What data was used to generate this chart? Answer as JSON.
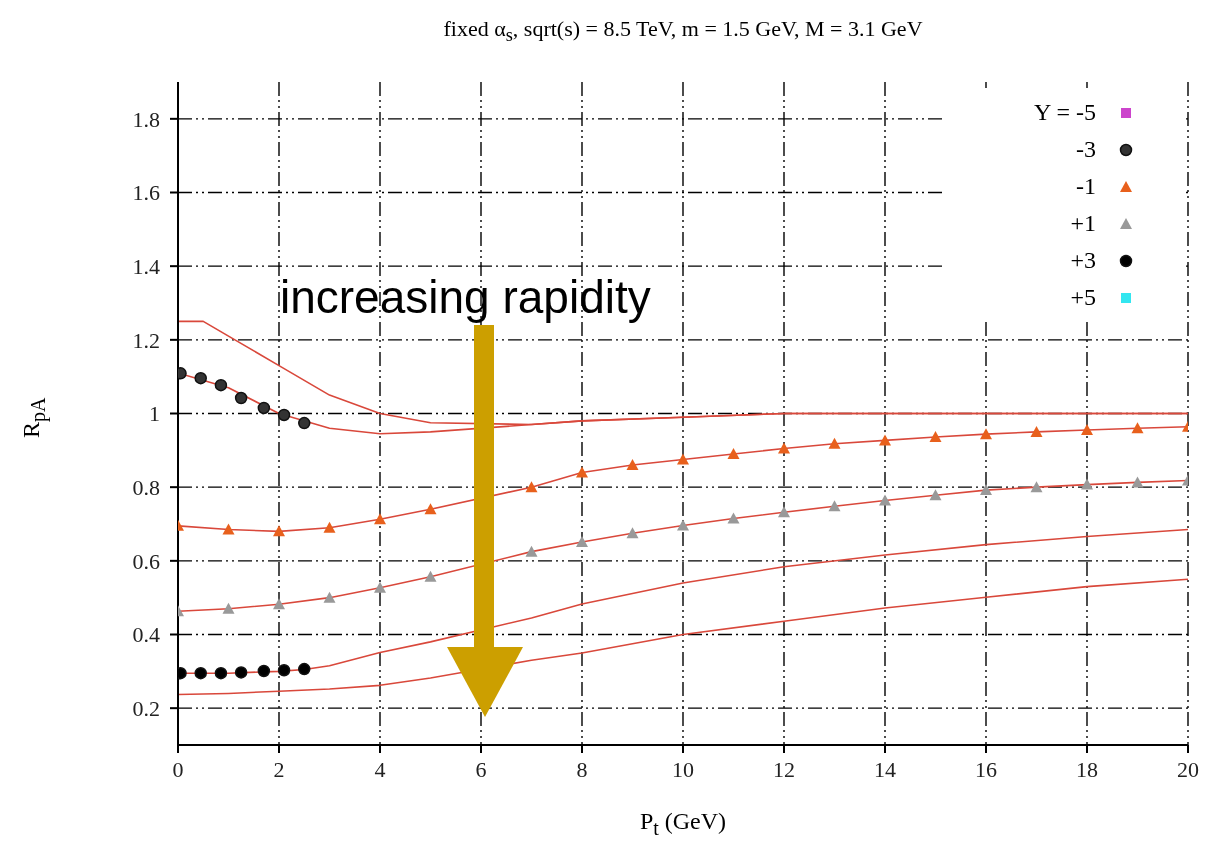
{
  "chart_data": {
    "type": "line",
    "title": "fixed α$_{s}$, sqrt(s) = 8.5 TeV, m = 1.5 GeV, M = 3.1 GeV",
    "xlabel": "P$_{t}$ (GeV)",
    "ylabel": "R$_{pA}$",
    "annotations": [
      "increasing rapidity"
    ],
    "xlim": [
      0,
      20
    ],
    "xticks": [
      0,
      2,
      4,
      6,
      8,
      10,
      12,
      14,
      16,
      18,
      20
    ],
    "ylim": [
      0.1,
      1.9
    ],
    "yticks": [
      0.2,
      0.4,
      0.6,
      0.8,
      1,
      1.2,
      1.4,
      1.6,
      1.8
    ],
    "grid": true,
    "legend": "top right",
    "line_style": "solid",
    "series": [
      {
        "color": "#d9483b",
        "x": [
          0,
          0.5,
          1,
          2,
          3,
          4,
          5,
          7,
          8,
          10,
          12,
          14,
          16,
          18,
          20
        ],
        "values": [
          1.25,
          1.25,
          1.21,
          1.13,
          1.05,
          1.0,
          0.975,
          0.97,
          0.98,
          0.99,
          1.0,
          1.0,
          1.0,
          1.0,
          1.0
        ]
      },
      {
        "color": "#d9483b",
        "x": [
          0,
          1,
          2,
          3,
          4,
          5,
          7,
          8,
          10,
          12,
          14,
          16,
          18,
          20
        ],
        "values": [
          1.11,
          1.07,
          1.0,
          0.96,
          0.945,
          0.95,
          0.97,
          0.98,
          0.99,
          1.0,
          1.0,
          1.0,
          1.0,
          1.0
        ]
      },
      {
        "color": "#d9483b",
        "x": [
          0,
          1,
          2,
          3,
          4,
          5,
          7,
          8,
          9,
          10,
          11,
          12,
          13,
          14,
          15,
          16,
          17,
          18,
          19,
          20
        ],
        "values": [
          0.695,
          0.685,
          0.68,
          0.69,
          0.713,
          0.74,
          0.8,
          0.84,
          0.86,
          0.875,
          0.89,
          0.905,
          0.918,
          0.927,
          0.936,
          0.944,
          0.95,
          0.955,
          0.96,
          0.964
        ]
      },
      {
        "color": "#d9483b",
        "x": [
          0,
          1,
          2,
          3,
          4,
          5,
          7,
          8,
          9,
          10,
          11,
          12,
          13,
          14,
          15,
          16,
          17,
          18,
          19,
          20
        ],
        "values": [
          0.463,
          0.47,
          0.482,
          0.5,
          0.527,
          0.557,
          0.625,
          0.651,
          0.675,
          0.696,
          0.715,
          0.732,
          0.748,
          0.764,
          0.778,
          0.792,
          0.8,
          0.807,
          0.813,
          0.818
        ]
      },
      {
        "color": "#d9483b",
        "x": [
          0,
          1,
          2,
          2.5,
          3,
          4,
          5,
          7,
          8,
          10,
          12,
          14,
          16,
          18,
          20
        ],
        "values": [
          0.295,
          0.295,
          0.3,
          0.305,
          0.315,
          0.351,
          0.38,
          0.445,
          0.483,
          0.54,
          0.584,
          0.616,
          0.644,
          0.666,
          0.685
        ]
      },
      {
        "color": "#d9483b",
        "x": [
          0,
          1,
          2,
          3,
          4,
          5,
          7,
          8,
          10,
          12,
          14,
          16,
          18,
          20
        ],
        "values": [
          0.237,
          0.24,
          0.246,
          0.252,
          0.262,
          0.282,
          0.33,
          0.35,
          0.4,
          0.436,
          0.472,
          0.501,
          0.53,
          0.55
        ]
      },
      {
        "type": "scatter",
        "name": "Y = -5",
        "color": "#cc44cc",
        "marker": "square"
      },
      {
        "type": "scatter",
        "name": "-3",
        "color": "#333333",
        "marker": "circle",
        "x": [
          0.05,
          0.45,
          0.85,
          1.25,
          1.7,
          2.1,
          2.5
        ],
        "values": [
          1.109,
          1.096,
          1.077,
          1.042,
          1.015,
          0.996,
          0.974
        ]
      },
      {
        "type": "scatter",
        "name": "-1",
        "color": "#e8601c",
        "marker": "triangle",
        "x": [
          0,
          1,
          2,
          3,
          4,
          5,
          7,
          8,
          9,
          10,
          11,
          12,
          13,
          14,
          15,
          16,
          17,
          18,
          19,
          20
        ],
        "values": [
          0.695,
          0.685,
          0.68,
          0.69,
          0.713,
          0.74,
          0.8,
          0.84,
          0.86,
          0.875,
          0.89,
          0.905,
          0.918,
          0.927,
          0.936,
          0.944,
          0.95,
          0.955,
          0.96,
          0.964
        ]
      },
      {
        "type": "scatter",
        "name": "+1",
        "color": "#999999",
        "marker": "triangle",
        "x": [
          0,
          1,
          2,
          3,
          4,
          5,
          7,
          8,
          9,
          10,
          11,
          12,
          13,
          14,
          15,
          16,
          17,
          18,
          19,
          20
        ],
        "values": [
          0.463,
          0.47,
          0.482,
          0.5,
          0.527,
          0.557,
          0.625,
          0.651,
          0.675,
          0.696,
          0.715,
          0.732,
          0.748,
          0.764,
          0.778,
          0.792,
          0.8,
          0.807,
          0.813,
          0.818
        ]
      },
      {
        "type": "scatter",
        "name": "+3",
        "color": "#000000",
        "marker": "circle",
        "x": [
          0.05,
          0.45,
          0.85,
          1.25,
          1.7,
          2.1,
          2.5
        ],
        "values": [
          0.295,
          0.295,
          0.295,
          0.297,
          0.301,
          0.303,
          0.306
        ]
      },
      {
        "type": "scatter",
        "name": "+5",
        "color": "#33e6f0",
        "marker": "square"
      }
    ]
  }
}
